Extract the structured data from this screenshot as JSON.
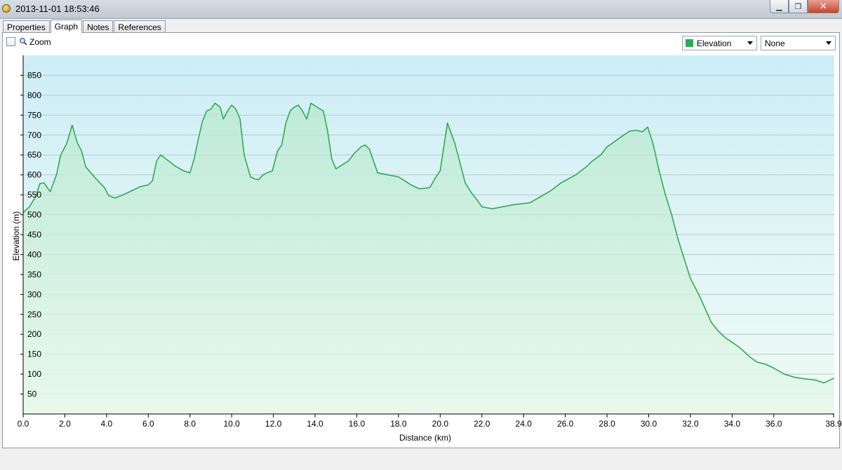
{
  "window": {
    "title": "2013-11-01 18:53:46",
    "minimize_glyph": "▁",
    "maximize_glyph": "❐",
    "close_glyph": "✕"
  },
  "tabs": [
    {
      "label": "Properties",
      "active": false
    },
    {
      "label": "Graph",
      "active": true
    },
    {
      "label": "Notes",
      "active": false
    },
    {
      "label": "References",
      "active": false
    }
  ],
  "toolbar": {
    "zoom_label": "Zoom",
    "zoom_checked": false,
    "series_select": {
      "value": "Elevation",
      "swatch_color": "#22b14c"
    },
    "secondary_select": {
      "value": "None"
    }
  },
  "chart_data": {
    "type": "area",
    "title": "",
    "xlabel": "Distance (km)",
    "ylabel": "Elevation (m)",
    "xlim": [
      0,
      38.9
    ],
    "ylim": [
      0,
      900
    ],
    "x_ticks": [
      "0.0",
      "2.0",
      "4.0",
      "6.0",
      "8.0",
      "10.0",
      "12.0",
      "14.0",
      "16.0",
      "18.0",
      "20.0",
      "22.0",
      "24.0",
      "26.0",
      "28.0",
      "30.0",
      "32.0",
      "34.0",
      "36.0",
      "38.9"
    ],
    "x_tick_values": [
      0,
      2,
      4,
      6,
      8,
      10,
      12,
      14,
      16,
      18,
      20,
      22,
      24,
      26,
      28,
      30,
      32,
      34,
      36,
      38.9
    ],
    "y_ticks": [
      50,
      100,
      150,
      200,
      250,
      300,
      350,
      400,
      450,
      500,
      550,
      600,
      650,
      700,
      750,
      800,
      850
    ],
    "grid": "horizontal",
    "line_color": "#2fab4f",
    "series": [
      {
        "name": "Elevation",
        "x": [
          0,
          0.3,
          0.6,
          0.8,
          1.0,
          1.3,
          1.6,
          1.8,
          2.1,
          2.35,
          2.6,
          2.8,
          3.0,
          3.5,
          3.9,
          4.1,
          4.4,
          4.8,
          5.2,
          5.6,
          6.0,
          6.2,
          6.4,
          6.6,
          6.9,
          7.3,
          7.7,
          8.0,
          8.2,
          8.4,
          8.6,
          8.8,
          9.0,
          9.2,
          9.45,
          9.6,
          9.8,
          10.0,
          10.2,
          10.4,
          10.6,
          10.9,
          11.1,
          11.3,
          11.5,
          11.7,
          11.95,
          12.2,
          12.4,
          12.6,
          12.8,
          13.0,
          13.2,
          13.4,
          13.6,
          13.8,
          14.1,
          14.4,
          14.6,
          14.8,
          15.0,
          15.3,
          15.6,
          15.9,
          16.2,
          16.4,
          16.6,
          17.0,
          17.5,
          18.0,
          18.3,
          18.6,
          19.0,
          19.5,
          19.8,
          20.0,
          20.35,
          20.7,
          20.9,
          21.2,
          21.5,
          21.8,
          22.0,
          22.5,
          23.0,
          23.5,
          24.0,
          24.3,
          24.8,
          25.3,
          25.8,
          26.5,
          27.0,
          27.3,
          27.7,
          28.0,
          28.4,
          28.8,
          29.1,
          29.4,
          29.7,
          29.95,
          30.2,
          30.5,
          30.8,
          31.1,
          31.4,
          31.7,
          32.0,
          32.4,
          32.7,
          33.0,
          33.3,
          33.7,
          34.0,
          34.4,
          34.8,
          35.2,
          35.6,
          36.0,
          36.5,
          37.0,
          37.5,
          38.0,
          38.4,
          38.9
        ],
        "y": [
          505,
          520,
          545,
          578,
          580,
          558,
          600,
          650,
          680,
          725,
          680,
          660,
          620,
          590,
          568,
          548,
          542,
          550,
          560,
          570,
          575,
          585,
          635,
          650,
          638,
          622,
          610,
          605,
          640,
          690,
          735,
          760,
          765,
          780,
          770,
          740,
          760,
          775,
          765,
          740,
          650,
          595,
          590,
          588,
          600,
          605,
          610,
          660,
          675,
          730,
          760,
          770,
          775,
          760,
          740,
          780,
          770,
          760,
          710,
          640,
          615,
          625,
          635,
          655,
          670,
          675,
          665,
          605,
          600,
          595,
          585,
          575,
          565,
          568,
          595,
          610,
          730,
          680,
          640,
          580,
          555,
          535,
          520,
          515,
          520,
          525,
          528,
          530,
          545,
          560,
          580,
          600,
          620,
          635,
          650,
          670,
          685,
          700,
          710,
          712,
          708,
          720,
          680,
          610,
          550,
          500,
          440,
          390,
          340,
          300,
          265,
          230,
          210,
          190,
          180,
          165,
          145,
          130,
          125,
          115,
          100,
          92,
          88,
          85,
          78,
          90
        ]
      }
    ]
  }
}
